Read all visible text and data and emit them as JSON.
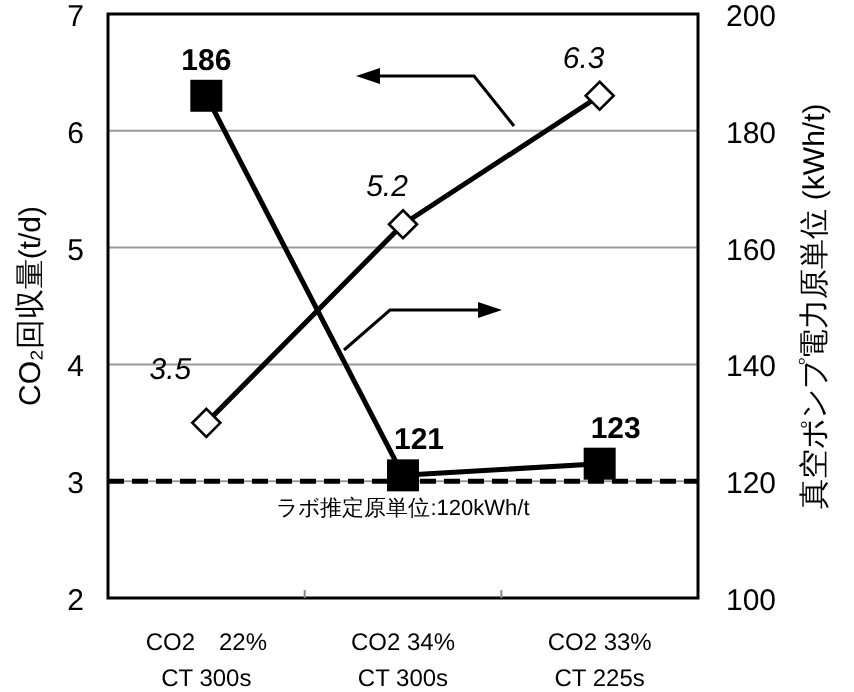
{
  "chart_data": {
    "type": "line",
    "ylabel": "CO₂回収量(t/d)",
    "y2label": "真空ポンプ電力原単位 (kWh/t)",
    "categories": [
      "CO2　22%\nCT 300s",
      "CO2 34%\nCT 300s",
      "CO2 33%\nCT 225s"
    ],
    "series": [
      {
        "color": "#000000",
        "values": [
          3.5,
          5.2,
          6.3
        ],
        "marker": "diamond",
        "axis": "y"
      },
      {
        "color": "#000000",
        "values": [
          186,
          121,
          123
        ],
        "marker": "square",
        "axis": "y2"
      }
    ],
    "ylim": [
      2,
      7
    ],
    "yticks": [
      2,
      3,
      4,
      5,
      6,
      7
    ],
    "y2lim": [
      100,
      200
    ],
    "y2ticks": [
      100,
      120,
      140,
      160,
      180,
      200
    ],
    "ref_lines": [
      {
        "axis": "y2",
        "value": 120,
        "label": "ラボ推定原単位:120kWh/t",
        "line_style": "dashed",
        "color": "#000000"
      }
    ],
    "grid": "y",
    "data_labels": true
  }
}
